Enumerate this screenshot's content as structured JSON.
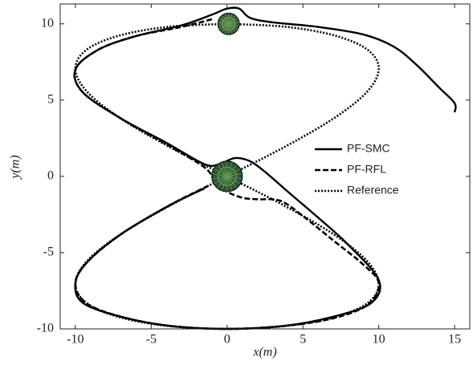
{
  "chart_data": {
    "type": "line",
    "xlabel": "x(m)",
    "ylabel": "y(m)",
    "xlim": [
      -11,
      16
    ],
    "ylim": [
      -10,
      11.3
    ],
    "xticks": [
      -10,
      -5,
      0,
      5,
      10,
      15
    ],
    "yticks": [
      -10,
      -5,
      0,
      5,
      10
    ],
    "legend": "right",
    "obstacles": [
      {
        "x": 0.1,
        "y": 10,
        "r": 0.7
      },
      {
        "x": 0,
        "y": 0,
        "r": 1
      }
    ],
    "series": [
      {
        "name": "PF-SMC",
        "color": "#000000",
        "dash": "solid",
        "x": [
          15,
          15,
          14,
          12.5,
          11,
          9,
          6,
          3,
          1.5,
          0.8,
          0,
          -1,
          -3,
          -6,
          -8.5,
          -10,
          -9.5,
          -7,
          -4,
          -1.5,
          -0.5,
          0.5,
          1.5,
          2.5,
          4,
          6,
          8,
          10,
          9.5,
          7,
          3.8,
          0,
          -3.8,
          -7,
          -9.5,
          -10,
          -9.2,
          -7,
          -3.8,
          -1.5
        ],
        "values": [
          4.2,
          4.8,
          5.8,
          7.3,
          8.5,
          9.3,
          9.8,
          10.1,
          10.4,
          11,
          11,
          10.6,
          9.9,
          9.2,
          8.3,
          7,
          5.5,
          3.8,
          2.2,
          0.8,
          0.8,
          1.2,
          1,
          0.3,
          -1,
          -2.7,
          -4.5,
          -6.8,
          -8.3,
          -9.2,
          -9.8,
          -10,
          -9.8,
          -9.2,
          -8.3,
          -7,
          -5.6,
          -3.8,
          -1.9,
          -0.8
        ]
      },
      {
        "name": "PF-RFL",
        "color": "#000000",
        "dash": "dashed",
        "x": [
          -1,
          -3,
          -6,
          -8.5,
          -10,
          -9.5,
          -7,
          -4,
          -1.5,
          -0.8,
          0,
          1,
          2,
          3.5,
          5,
          7,
          9,
          10,
          9.3,
          7,
          3.8,
          0,
          -3.8,
          -7,
          -9.3,
          -10,
          -9.2,
          -7,
          -3.8,
          -1.2
        ],
        "values": [
          10.3,
          9.8,
          9.2,
          8.3,
          7,
          5.5,
          3.8,
          2.1,
          0.6,
          -0.3,
          -1,
          -1.4,
          -1.5,
          -1.6,
          -2.6,
          -4.2,
          -5.8,
          -7,
          -8.4,
          -9.3,
          -9.8,
          -10,
          -9.8,
          -9.2,
          -8.3,
          -7,
          -5.6,
          -3.8,
          -1.9,
          -0.6
        ]
      },
      {
        "name": "Reference",
        "color": "#000000",
        "dash": "dotted",
        "x": [
          0,
          3.83,
          7.07,
          9.24,
          10,
          9.24,
          7.07,
          3.83,
          0,
          -3.83,
          -7.07,
          -9.24,
          -10,
          -9.24,
          -7.07,
          -3.83,
          0,
          3.83,
          7.07,
          9.24,
          10,
          9.24,
          7.07,
          3.83,
          0,
          -3.83,
          -7.07,
          -9.24,
          -10,
          -9.24,
          -7.07,
          -3.83,
          0
        ],
        "values": [
          10,
          9.81,
          9.24,
          8.32,
          7.07,
          5.56,
          3.83,
          1.95,
          0,
          -1.95,
          -3.83,
          -5.56,
          -7.07,
          -8.32,
          -9.24,
          -9.81,
          -10,
          -9.81,
          -9.24,
          -8.32,
          -7.07,
          -5.56,
          -3.83,
          -1.95,
          0,
          1.95,
          3.83,
          5.56,
          7.07,
          8.32,
          9.24,
          9.81,
          10
        ]
      }
    ]
  }
}
